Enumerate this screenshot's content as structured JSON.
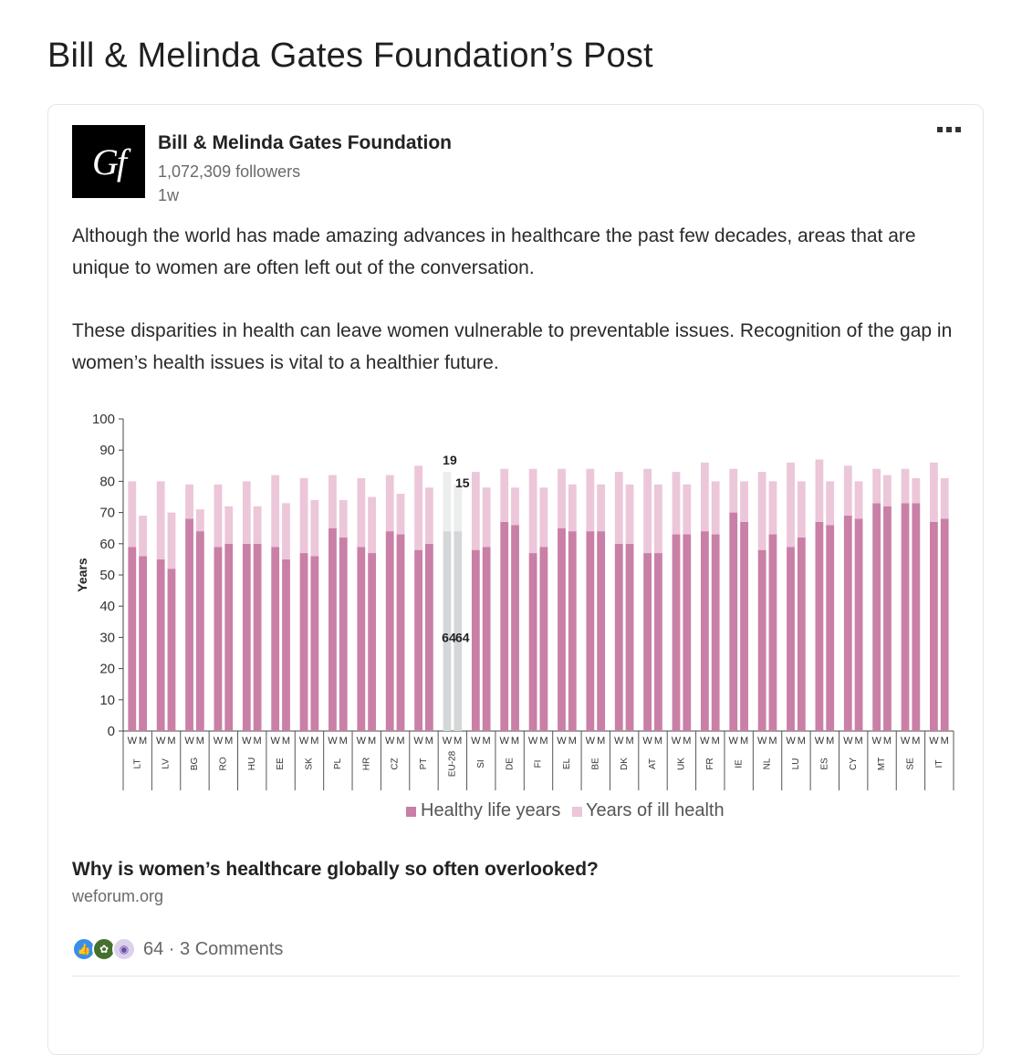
{
  "page": {
    "title": "Bill & Melinda Gates Foundation’s Post"
  },
  "author": {
    "logo_text": "Gf",
    "name": "Bill & Melinda Gates Foundation",
    "followers": "1,072,309 followers",
    "time": "1w"
  },
  "post": {
    "paragraphs": [
      "Although the world has made amazing advances in healthcare the past few decades, areas that are unique to women are often left out of the conversation.",
      "These disparities in health can leave women vulnerable to preventable issues. Recognition of the gap in women’s health issues is vital to a healthier future."
    ]
  },
  "link": {
    "title": "Why is women’s healthcare globally so often overlooked?",
    "domain": "weforum.org"
  },
  "reactions": {
    "icons": [
      "like-icon",
      "celebrate-icon",
      "curious-icon"
    ],
    "summary": "64 · 3 Comments"
  },
  "chart_data": {
    "type": "bar",
    "stacked": true,
    "ylabel": "Years",
    "ylim": [
      0,
      100
    ],
    "yticks": [
      0,
      10,
      20,
      30,
      40,
      50,
      60,
      70,
      80,
      90,
      100
    ],
    "bar_sub_label": "W",
    "bar_sub_label2": "M",
    "highlight_country": "EU-28",
    "highlight_labels": {
      "healthy": [
        "64",
        "64"
      ],
      "ill": [
        "19",
        "15"
      ]
    },
    "legend": [
      "Healthy life years",
      "Years of ill health"
    ],
    "colors": {
      "healthy": "#c97fa6",
      "ill": "#ecc6d9",
      "healthy_highlight": "#d4d7d8",
      "ill_highlight": "#eceded"
    },
    "countries": [
      "LT",
      "LV",
      "BG",
      "RO",
      "HU",
      "EE",
      "SK",
      "PL",
      "HR",
      "CZ",
      "PT",
      "EU-28",
      "SI",
      "DE",
      "FI",
      "EL",
      "BE",
      "DK",
      "AT",
      "UK",
      "FR",
      "IE",
      "NL",
      "LU",
      "ES",
      "CY",
      "MT",
      "SE",
      "IT"
    ],
    "series": [
      {
        "name": "Healthy life years",
        "women": [
          59,
          55,
          68,
          59,
          60,
          59,
          57,
          65,
          59,
          64,
          58,
          64,
          58,
          67,
          57,
          65,
          64,
          60,
          57,
          63,
          64,
          70,
          58,
          59,
          67,
          69,
          73,
          73,
          67
        ],
        "men": [
          56,
          52,
          64,
          60,
          60,
          55,
          56,
          62,
          57,
          63,
          60,
          64,
          59,
          66,
          59,
          64,
          64,
          60,
          57,
          63,
          63,
          67,
          63,
          62,
          66,
          68,
          72,
          73,
          68
        ]
      },
      {
        "name": "Years of ill health",
        "women": [
          21,
          25,
          11,
          20,
          20,
          23,
          24,
          17,
          22,
          18,
          27,
          19,
          25,
          17,
          27,
          19,
          20,
          23,
          27,
          20,
          22,
          14,
          25,
          27,
          20,
          16,
          11,
          11,
          19
        ],
        "men": [
          13,
          18,
          7,
          12,
          12,
          18,
          18,
          12,
          18,
          13,
          18,
          15,
          19,
          12,
          19,
          15,
          15,
          19,
          22,
          16,
          17,
          13,
          17,
          18,
          14,
          12,
          10,
          8,
          13
        ]
      }
    ]
  }
}
